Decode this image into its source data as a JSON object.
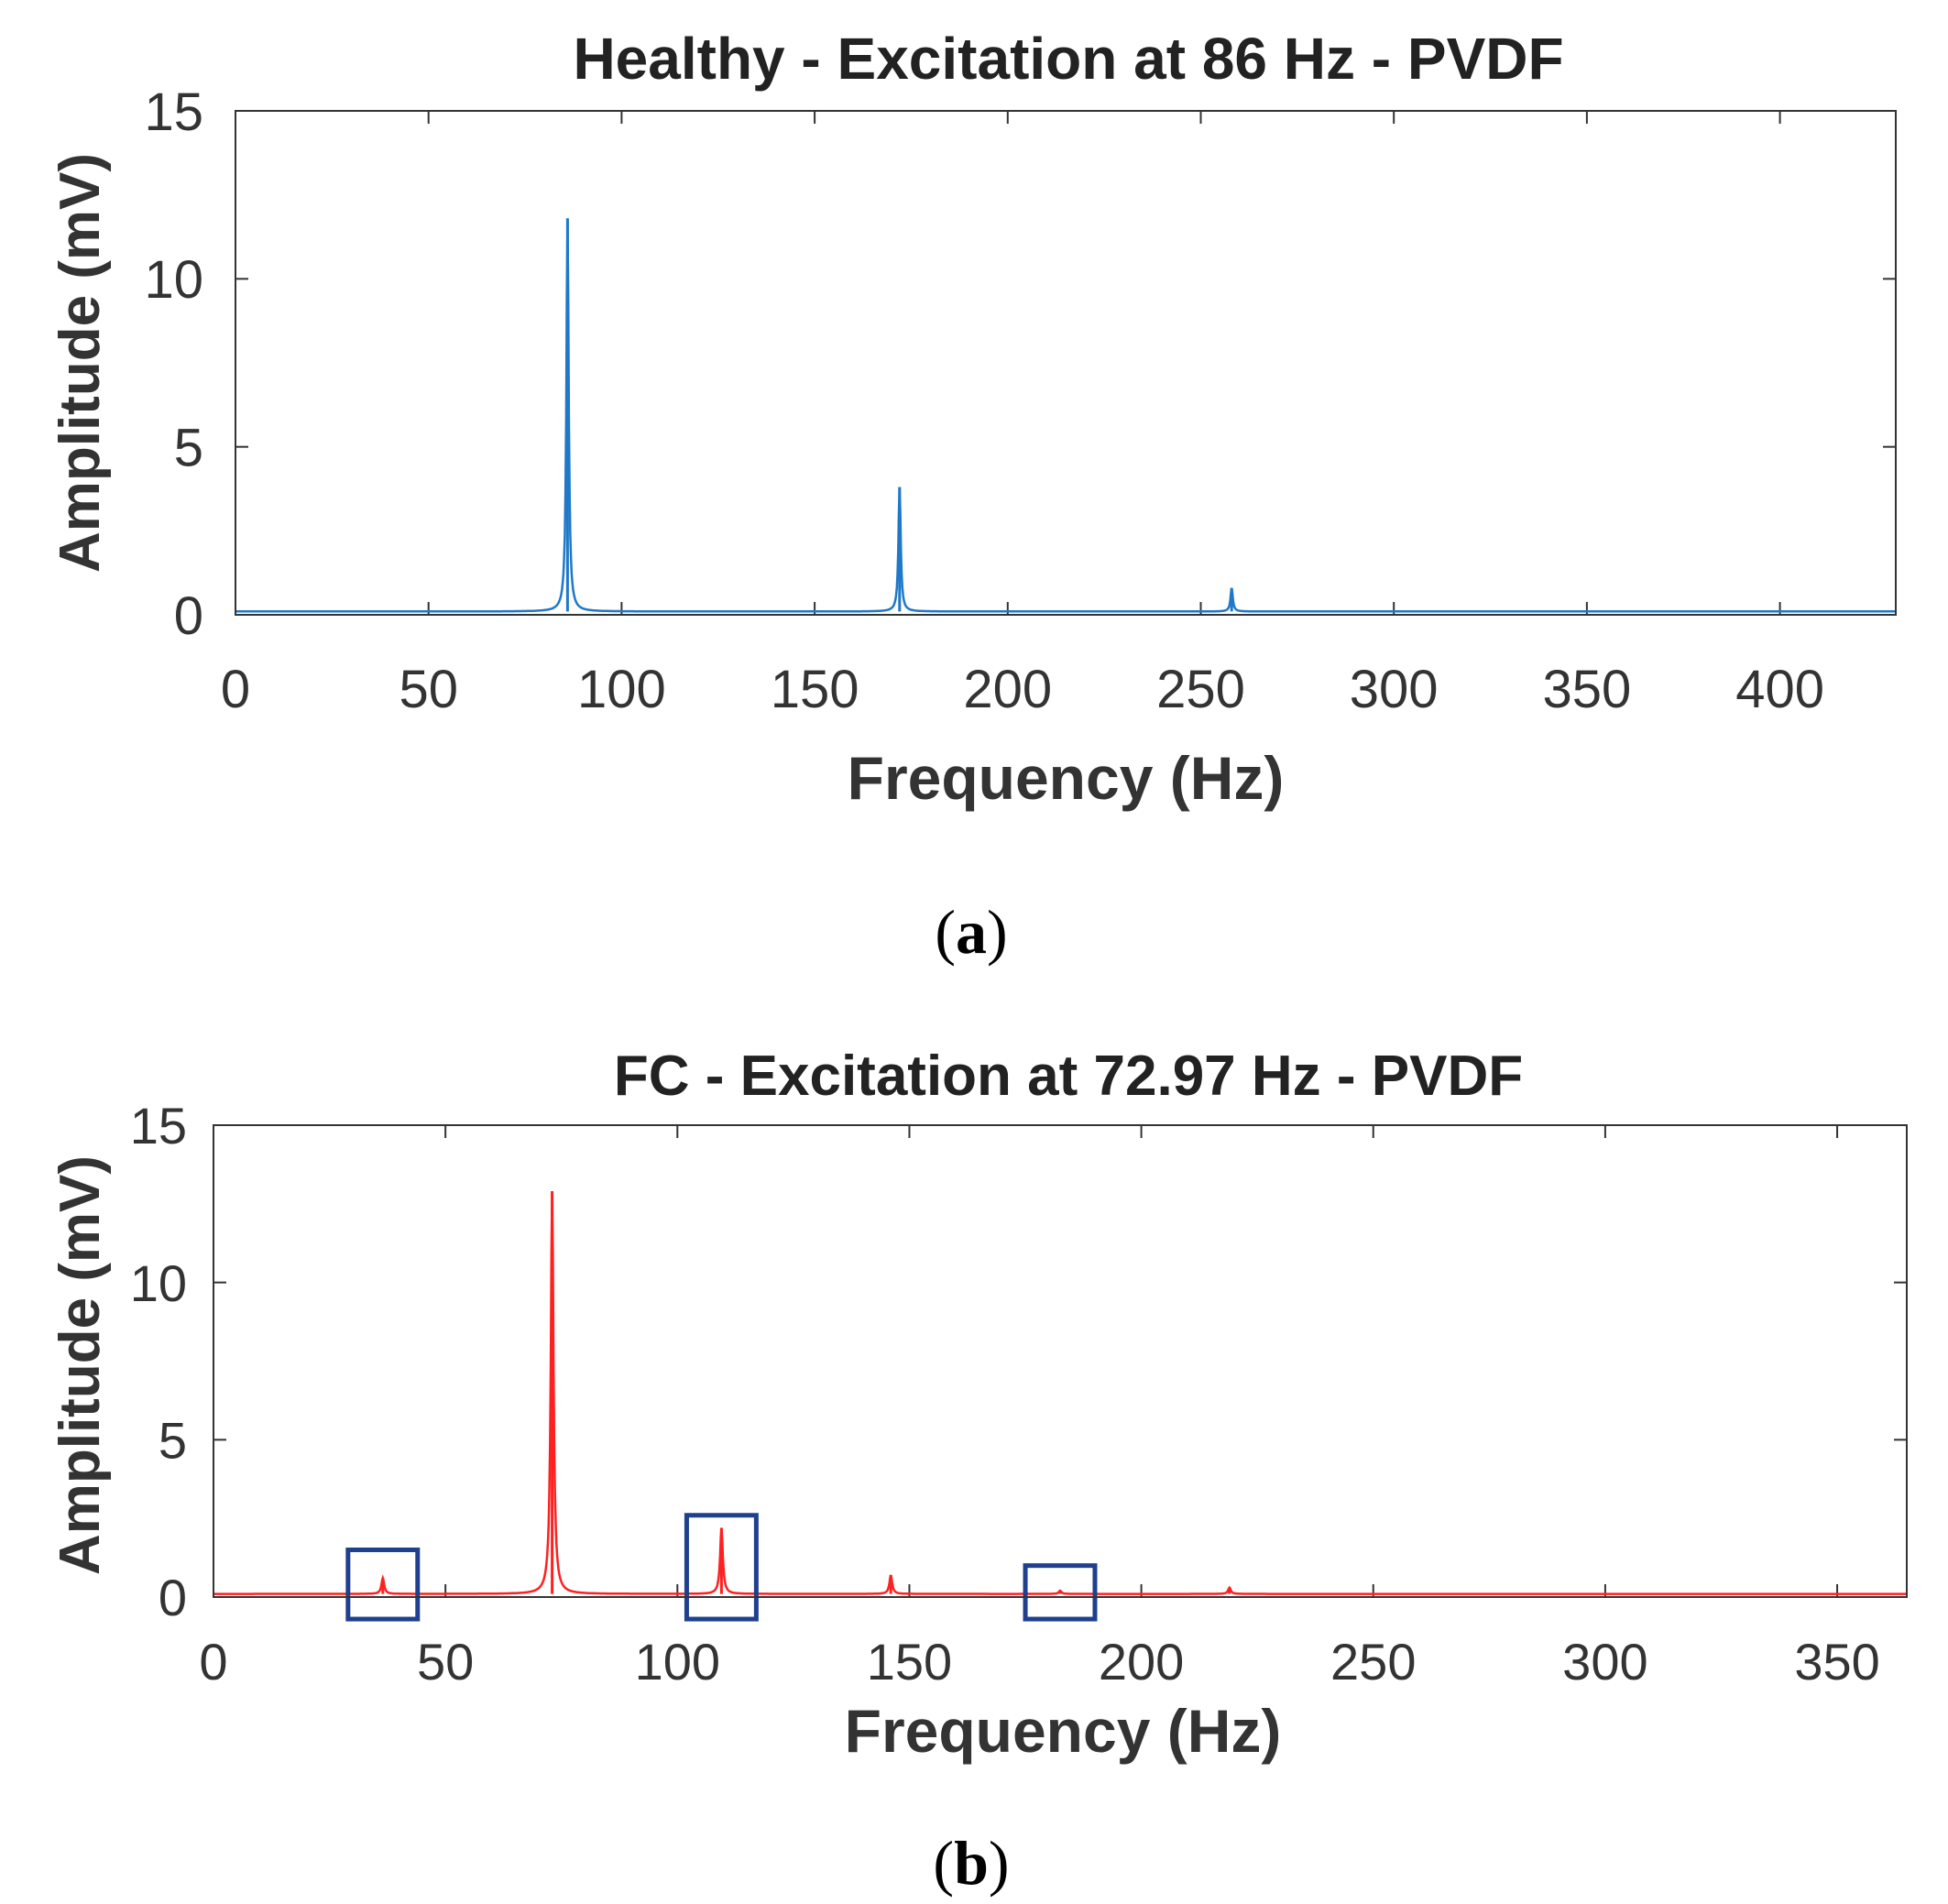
{
  "chart_data": [
    {
      "id": "a",
      "type": "line",
      "title": "Healthy - Excitation at 86 Hz - PVDF",
      "xlabel": "Frequency (Hz)",
      "ylabel": "Amplitude (mV)",
      "xlim": [
        0,
        430
      ],
      "ylim": [
        0,
        15
      ],
      "xticks": [
        0,
        50,
        100,
        150,
        200,
        250,
        300,
        350,
        400
      ],
      "yticks": [
        0,
        5,
        10,
        15
      ],
      "grid": false,
      "caption_letter": "a",
      "color": "#1f78c8",
      "baseline": 0.1,
      "peaks": [
        {
          "x": 86,
          "y": 11.8
        },
        {
          "x": 172,
          "y": 3.8
        },
        {
          "x": 258,
          "y": 0.8
        }
      ],
      "highlight_boxes": []
    },
    {
      "id": "b",
      "type": "line",
      "title": "FC - Excitation at 72.97 Hz - PVDF",
      "xlabel": "Frequency (Hz)",
      "ylabel": "Amplitude (mV)",
      "xlim": [
        0,
        365
      ],
      "ylim": [
        0,
        15
      ],
      "xticks": [
        0,
        50,
        100,
        150,
        200,
        250,
        300,
        350
      ],
      "yticks": [
        0,
        5,
        10,
        15
      ],
      "grid": false,
      "caption_letter": "b",
      "color": "#ff2020",
      "baseline": 0.1,
      "peaks": [
        {
          "x": 36.5,
          "y": 0.6
        },
        {
          "x": 73,
          "y": 12.9
        },
        {
          "x": 109.5,
          "y": 2.2
        },
        {
          "x": 146,
          "y": 0.7
        },
        {
          "x": 182.5,
          "y": 0.2
        },
        {
          "x": 219,
          "y": 0.3
        }
      ],
      "highlight_boxes": [
        {
          "x_range": [
            29,
            44
          ],
          "y_range": [
            -0.7,
            1.5
          ]
        },
        {
          "x_range": [
            102,
            117
          ],
          "y_range": [
            -0.7,
            2.6
          ]
        },
        {
          "x_range": [
            175,
            190
          ],
          "y_range": [
            -0.7,
            1.0
          ]
        }
      ],
      "box_color": "#1f3f8f"
    }
  ]
}
